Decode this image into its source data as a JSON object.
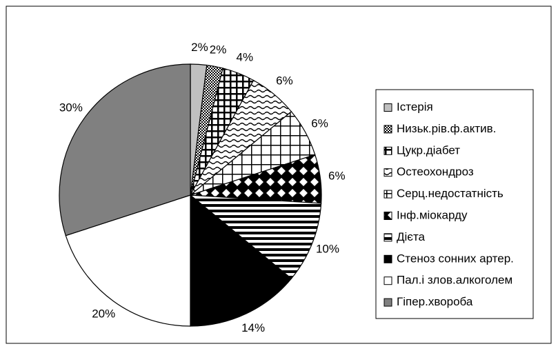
{
  "chart_data": {
    "type": "pie",
    "categories": [
      "Істерія",
      "Низьк.рів.ф.актив.",
      "Цукр.діабет",
      "Остеохондроз",
      "Серц.недостатність",
      "Інф.міокарду",
      "Дієта",
      "Стеноз сонних артер.",
      "Пал.і злов.алкоголем",
      "Гіпер.хвороба"
    ],
    "values": [
      2,
      2,
      4,
      6,
      6,
      6,
      10,
      14,
      20,
      30
    ],
    "value_labels": [
      "2%",
      "2%",
      "4%",
      "6%",
      "6%",
      "6%",
      "10%",
      "14%",
      "20%",
      "30%"
    ],
    "colors": [
      "#c0c0c0",
      "url(#p-dots)",
      "url(#p-grid-thick)",
      "url(#p-wave)",
      "url(#p-grid)",
      "url(#p-diamond)",
      "url(#p-hstripe)",
      "#000000",
      "#ffffff",
      "#808080"
    ],
    "legend": "right"
  }
}
